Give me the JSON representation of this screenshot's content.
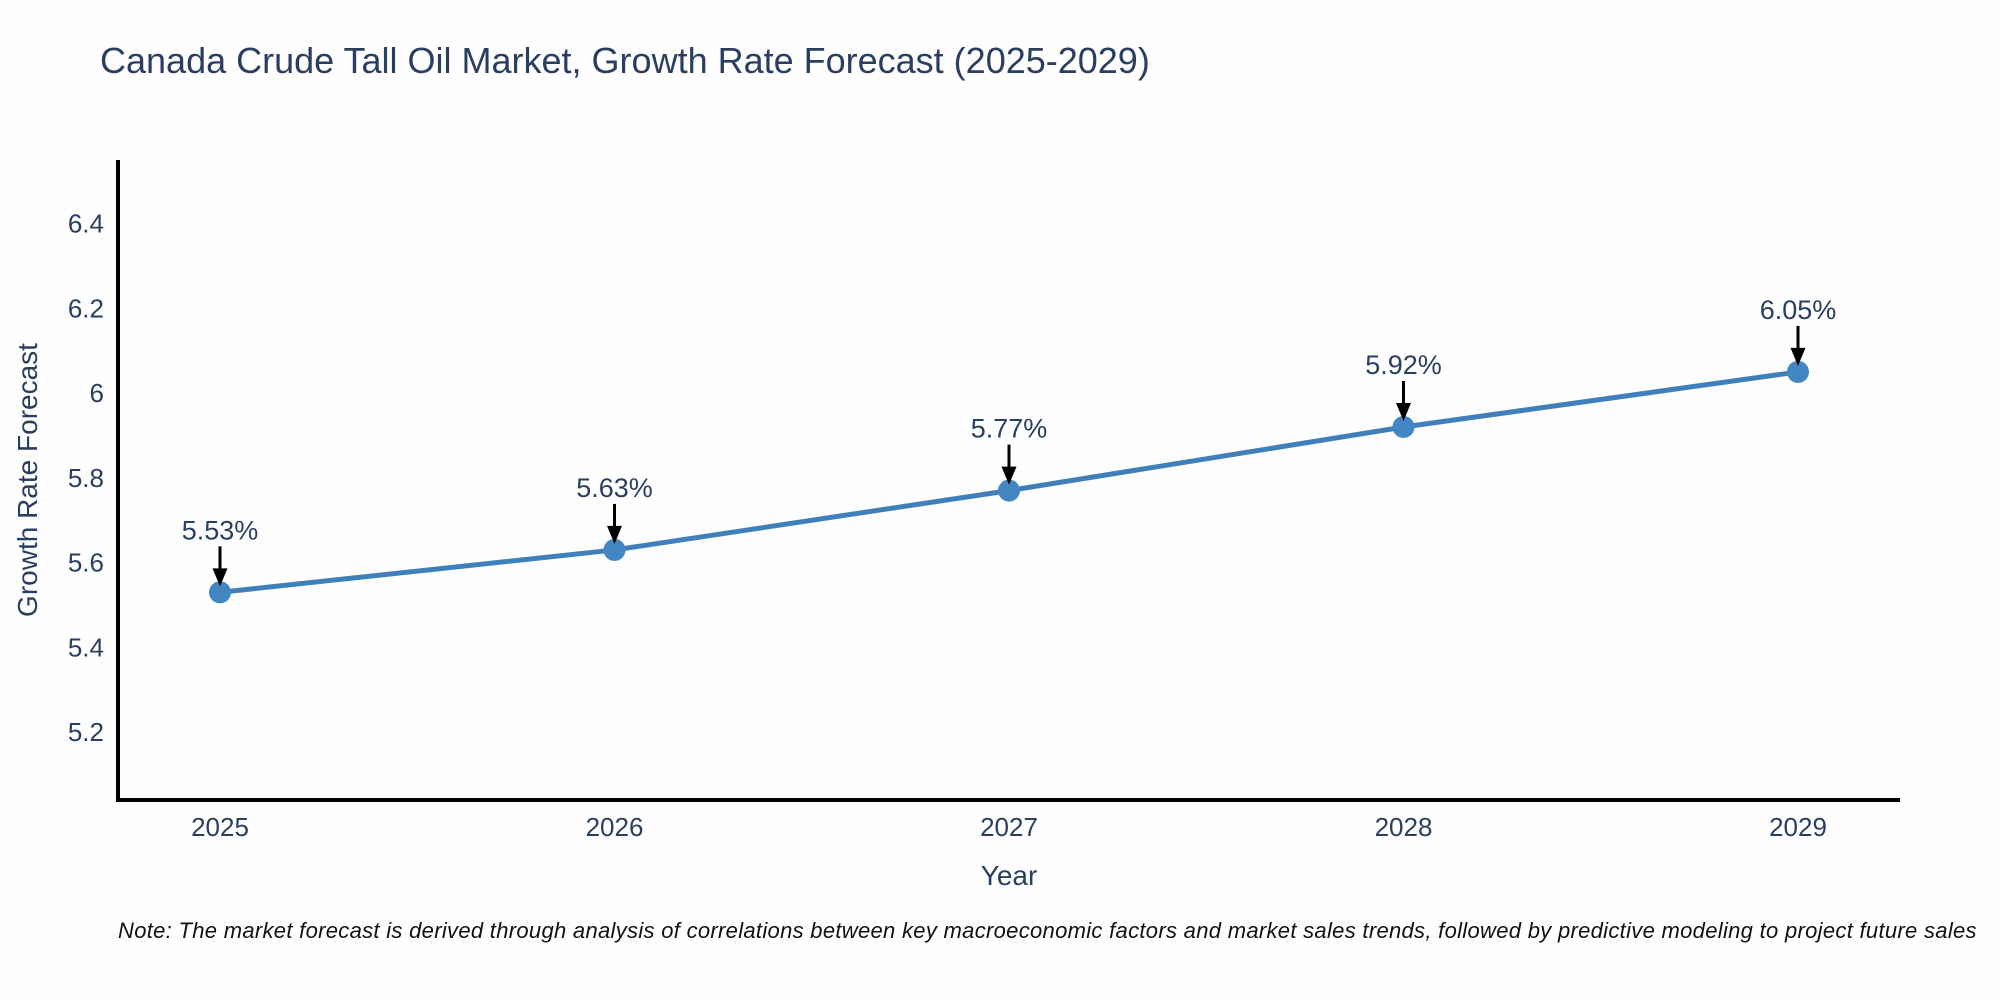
{
  "chart_data": {
    "type": "line",
    "title": "Canada Crude Tall Oil Market, Growth Rate Forecast (2025-2029)",
    "xlabel": "Year",
    "ylabel": "Growth Rate Forecast",
    "categories": [
      "2025",
      "2026",
      "2027",
      "2028",
      "2029"
    ],
    "values": [
      5.53,
      5.63,
      5.77,
      5.92,
      6.05
    ],
    "point_labels": [
      "5.53%",
      "5.63%",
      "5.77%",
      "5.92%",
      "6.05%"
    ],
    "ylim": [
      5.04,
      6.55
    ],
    "yticks": [
      5.2,
      5.4,
      5.6,
      5.8,
      6,
      6.2,
      6.4
    ],
    "ytick_labels": [
      "5.2",
      "5.4",
      "5.6",
      "5.8",
      "6",
      "6.2",
      "6.4"
    ],
    "grid": false,
    "legend": "none",
    "colors": {
      "line": "#4080ba",
      "marker": "#4386c4",
      "axis": "#000000",
      "text": "#2a3f5f",
      "annotation_arrow": "#000000",
      "background": "#fefefe"
    }
  },
  "note": "Note: The market forecast is derived through analysis of correlations between key macroeconomic factors and market sales trends, followed by predictive modeling to project future sales"
}
